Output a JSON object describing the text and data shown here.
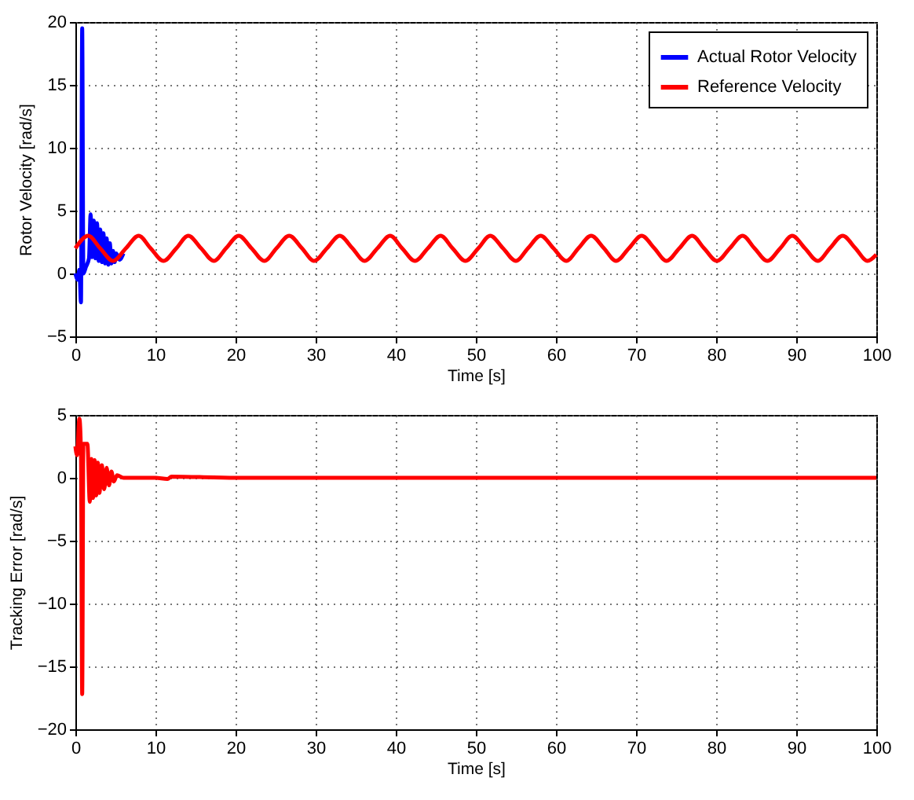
{
  "chart_data": [
    {
      "type": "line",
      "xlabel": "Time [s]",
      "ylabel": "Rotor Velocity [rad/s]",
      "xlim": [
        0,
        100
      ],
      "xticks": [
        0,
        10,
        20,
        30,
        40,
        50,
        60,
        70,
        80,
        90,
        100
      ],
      "ylim": [
        -5,
        20
      ],
      "yticks": [
        -5,
        0,
        5,
        10,
        15,
        20
      ],
      "grid": true,
      "legend": "top right",
      "series": [
        {
          "name": "Actual Rotor Velocity",
          "color": "#0000ff",
          "x": [
            0,
            0.3,
            0.5,
            0.7,
            0.85,
            1.0,
            1.3,
            1.7,
            1.9,
            2.1,
            2.3,
            2.5,
            2.7,
            2.9,
            3.1,
            3.3,
            3.5,
            3.7,
            3.9,
            4.1,
            4.3,
            4.5,
            4.7,
            4.9,
            5.1,
            5.5,
            6
          ],
          "values": [
            0,
            -0.5,
            0.3,
            -2.3,
            19.5,
            0,
            0.5,
            1.2,
            4.7,
            1.3,
            4.2,
            1.2,
            4.0,
            1.0,
            3.5,
            0.9,
            3.2,
            0.8,
            2.8,
            0.7,
            2.4,
            0.8,
            1.8,
            0.9,
            1.6,
            1.1,
            1.6
          ]
        },
        {
          "name": "Reference Velocity",
          "color": "#ff0000",
          "x": [
            0,
            1.6,
            3.1,
            4.7,
            6.3,
            7.9,
            9.4,
            11,
            12.6,
            14.1,
            15.7,
            17.3,
            18.8,
            20.4,
            22,
            23.6,
            25.1,
            26.7,
            28.3,
            29.8,
            31.4,
            33,
            34.6,
            36.1,
            37.7,
            39.3,
            40.8,
            42.4,
            44,
            45.6,
            47.1,
            48.7,
            50.3,
            51.8,
            53.4,
            55,
            56.5,
            58.1,
            59.7,
            61.3,
            62.8,
            64.4,
            66,
            67.5,
            69.1,
            70.7,
            72.3,
            73.8,
            75.4,
            77,
            78.5,
            80.1,
            81.7,
            83.3,
            84.8,
            86.4,
            88,
            89.5,
            91.1,
            92.7,
            94.2,
            95.8,
            97.4,
            98.9,
            100
          ],
          "values": [
            2,
            3,
            2,
            1,
            2,
            3,
            2,
            1,
            2,
            3,
            2,
            1,
            2,
            3,
            2,
            1,
            2,
            3,
            2,
            1,
            2,
            3,
            2,
            1,
            2,
            3,
            2,
            1,
            2,
            3,
            2,
            1,
            2,
            3,
            2,
            1,
            2,
            3,
            2,
            1,
            2,
            3,
            2,
            1,
            2,
            3,
            2,
            1,
            2,
            3,
            2,
            1,
            2,
            3,
            2,
            1,
            2,
            3,
            2,
            1,
            2,
            3,
            2,
            1,
            1.5
          ]
        }
      ]
    },
    {
      "type": "line",
      "xlabel": "Time [s]",
      "ylabel": "Tracking Error [rad/s]",
      "xlim": [
        0,
        100
      ],
      "xticks": [
        0,
        10,
        20,
        30,
        40,
        50,
        60,
        70,
        80,
        90,
        100
      ],
      "ylim": [
        -20,
        5
      ],
      "yticks": [
        -20,
        -15,
        -10,
        -5,
        0,
        5
      ],
      "grid": true,
      "series": [
        {
          "color": "#ff0000",
          "x": [
            0,
            0.2,
            0.5,
            0.7,
            0.85,
            1.0,
            1.5,
            1.8,
            2.0,
            2.2,
            2.4,
            2.6,
            2.8,
            3.0,
            3.3,
            3.6,
            3.9,
            4.2,
            4.5,
            4.8,
            5.2,
            6,
            10,
            11.5,
            12,
            20,
            30,
            40,
            50,
            60,
            70,
            80,
            90,
            100
          ],
          "values": [
            2.5,
            1.8,
            4.7,
            2,
            -17.2,
            2.7,
            2.7,
            -1.9,
            1.5,
            -1.6,
            1.4,
            -1.4,
            1.2,
            -1.2,
            1.0,
            -0.9,
            0.8,
            -0.6,
            0.5,
            -0.3,
            0.2,
            0,
            0,
            -0.1,
            0.1,
            0,
            0,
            0,
            0,
            0,
            0,
            0,
            0,
            0
          ]
        }
      ]
    }
  ]
}
